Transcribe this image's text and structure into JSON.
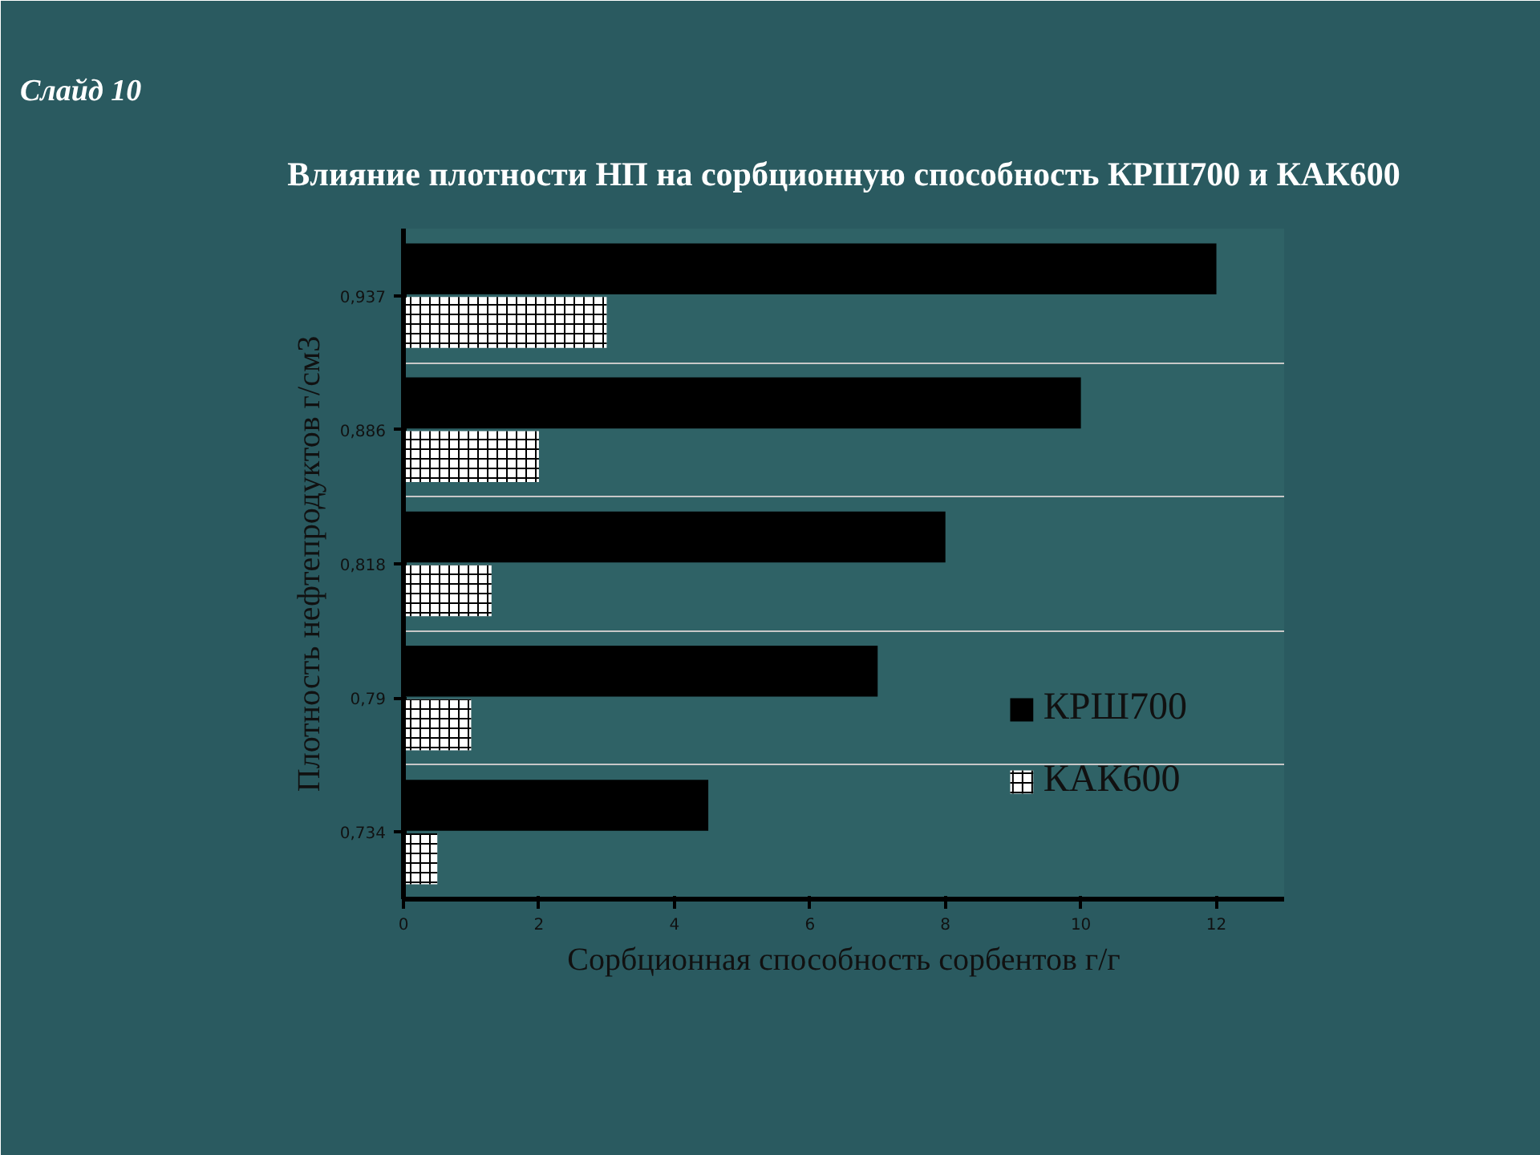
{
  "chart_data": {
    "type": "bar",
    "orientation": "horizontal",
    "title": "Влияние плотности НП на сорбционную способность КРШ700 и КАК600",
    "annotations": [
      "Слайд 10"
    ],
    "xlabel": "Сорбционная способность сорбентов г/г",
    "ylabel": "Плотность нефтепродуктов г/см3",
    "categories": [
      "0,937",
      "0,886",
      "0,818",
      "0,79",
      "0,734"
    ],
    "series": [
      {
        "name": "КРШ700",
        "color": "#000000",
        "values": [
          12,
          10,
          8,
          7,
          4.5
        ]
      },
      {
        "name": "КАК600",
        "color": "#ffffff",
        "values": [
          3,
          2,
          1.3,
          1,
          0.5
        ]
      }
    ],
    "xlim": [
      0,
      13
    ],
    "xticks": [
      0,
      2,
      4,
      6,
      8,
      10,
      12
    ],
    "grid": "y",
    "legend": "bottom right"
  }
}
